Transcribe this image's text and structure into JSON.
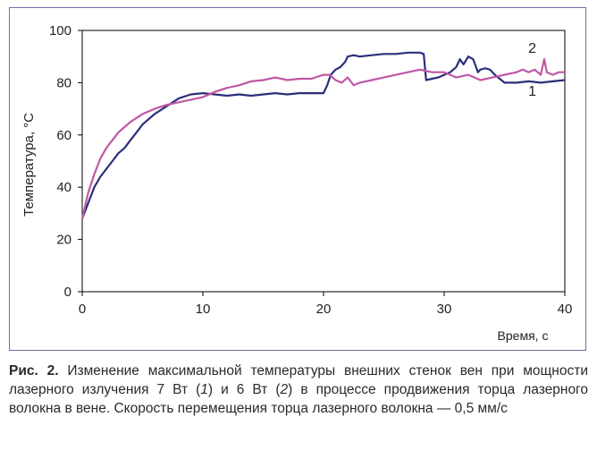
{
  "chart_data": {
    "type": "line",
    "ylabel": "Температура, °С",
    "xlabel": "Время, с",
    "xlim": [
      0,
      40
    ],
    "ylim": [
      0,
      100
    ],
    "xticks": [
      0,
      10,
      20,
      30,
      40
    ],
    "yticks": [
      0,
      20,
      40,
      60,
      80,
      100
    ],
    "grid": false,
    "series": [
      {
        "name": "1",
        "color": "#2b2f7a",
        "x": [
          0,
          0.5,
          1,
          1.5,
          2,
          2.5,
          3,
          3.5,
          4,
          4.5,
          5,
          6,
          7,
          8,
          9,
          10,
          11,
          12,
          13,
          14,
          15,
          16,
          17,
          18,
          19,
          20,
          20.3,
          20.6,
          21,
          21.4,
          21.8,
          22,
          22.5,
          23,
          24,
          25,
          26,
          27,
          28,
          28.3,
          28.5,
          29,
          29.5,
          30,
          30.5,
          31,
          31.3,
          31.6,
          32,
          32.4,
          32.8,
          33,
          33.4,
          33.8,
          34.2,
          35,
          36,
          37,
          38,
          39,
          40
        ],
        "y": [
          28,
          34,
          40,
          44,
          47,
          50,
          53,
          55,
          58,
          61,
          64,
          68,
          71,
          74,
          75.5,
          76,
          75.5,
          75,
          75.5,
          75,
          75.5,
          76,
          75.5,
          76,
          76,
          76,
          79,
          83,
          85,
          86,
          88,
          90,
          90.5,
          90,
          90.5,
          91,
          91,
          91.5,
          91.5,
          91,
          81,
          81.5,
          82,
          83,
          84,
          86,
          89,
          87,
          90,
          89,
          84,
          85,
          85.5,
          85,
          83,
          80,
          80,
          80.5,
          80,
          80.5,
          81
        ]
      },
      {
        "name": "2",
        "color": "#c057a5",
        "x": [
          0,
          0.5,
          1,
          1.5,
          2,
          2.5,
          3,
          3.5,
          4,
          4.5,
          5,
          6,
          7,
          8,
          9,
          10,
          11,
          12,
          13,
          14,
          15,
          16,
          17,
          18,
          19,
          20,
          20.5,
          21,
          21.5,
          22,
          22.5,
          23,
          24,
          25,
          26,
          27,
          28,
          29,
          30,
          31,
          32,
          33,
          34,
          35,
          36,
          36.5,
          37,
          37.5,
          38,
          38.3,
          38.5,
          39,
          39.5,
          40
        ],
        "y": [
          28,
          38,
          45,
          51,
          55,
          58,
          61,
          63,
          65,
          66.5,
          68,
          70,
          71.5,
          72.5,
          73.5,
          74.5,
          76.5,
          78,
          79,
          80.5,
          81,
          82,
          81,
          81.5,
          81.5,
          83,
          83,
          81,
          80,
          82,
          79,
          80,
          81,
          82,
          83,
          84,
          85,
          84,
          84,
          82,
          83,
          81,
          82,
          83,
          84,
          85,
          84,
          85,
          83,
          89,
          84,
          83,
          84,
          84
        ]
      }
    ],
    "annotations": [
      {
        "text": "2",
        "x": 37.3,
        "y": 91.5
      },
      {
        "text": "1",
        "x": 37.3,
        "y": 75
      }
    ]
  },
  "caption": {
    "label": "Рис. 2.",
    "text": "Изменение максимальной температуры внешних стенок вен при мощности лазерного излучения 7 Вт (",
    "ref1": "1",
    "text2": ") и 6 Вт (",
    "ref2": "2",
    "text3": ") в процессе продвижения торца лазерного волокна в вене. Скорость перемещения торца лазерного волокна — 0,5 мм/с"
  }
}
